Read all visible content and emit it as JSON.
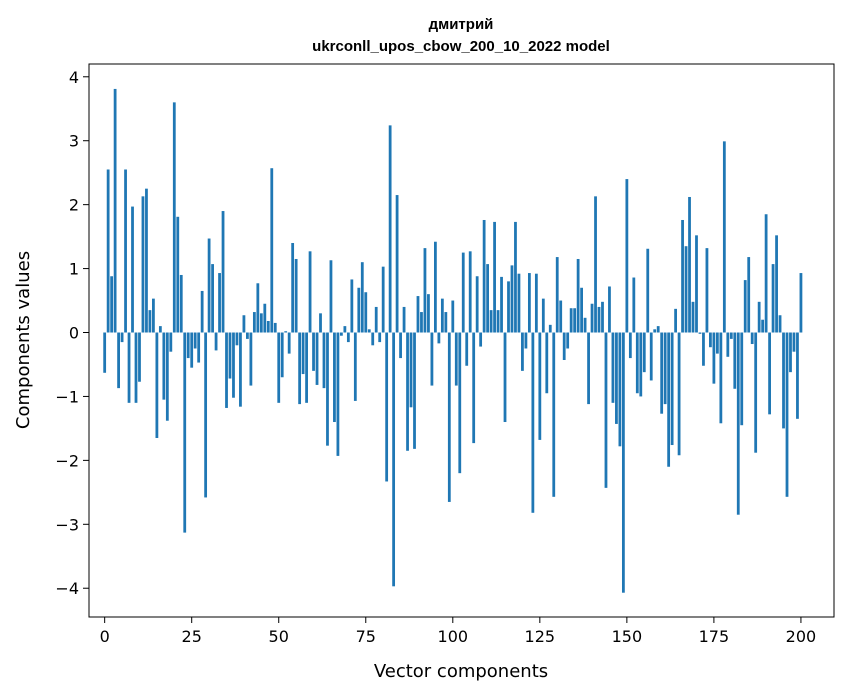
{
  "chart_data": {
    "type": "bar",
    "title": "дмитрий",
    "subtitle": "ukrconll_upos_cbow_200_10_2022 model",
    "xlabel": "Vector components",
    "ylabel": "Components values",
    "xlim": [
      -4.5,
      209.5
    ],
    "ylim": [
      -4.45,
      4.2
    ],
    "xticks": [
      0,
      25,
      50,
      75,
      100,
      125,
      150,
      175,
      200
    ],
    "yticks": [
      -4,
      -3,
      -2,
      -1,
      0,
      1,
      2,
      3,
      4
    ],
    "xtick_labels": [
      "0",
      "25",
      "50",
      "75",
      "100",
      "125",
      "150",
      "175",
      "200"
    ],
    "ytick_labels": [
      "−4",
      "−3",
      "−2",
      "−1",
      "0",
      "1",
      "2",
      "3",
      "4"
    ],
    "bar_color": "#1f77b4",
    "values": [
      -0.63,
      2.55,
      0.88,
      3.81,
      -0.87,
      -0.15,
      2.55,
      -1.1,
      1.97,
      -1.1,
      -0.77,
      2.13,
      2.25,
      0.35,
      0.53,
      -1.65,
      0.1,
      -1.05,
      -1.38,
      -0.3,
      3.6,
      1.81,
      0.9,
      -3.13,
      -0.4,
      -0.55,
      -0.25,
      -0.47,
      0.65,
      -2.58,
      1.47,
      1.07,
      -0.28,
      0.93,
      1.9,
      -1.18,
      -0.72,
      -1.02,
      -0.2,
      -1.16,
      0.27,
      -0.1,
      -0.83,
      0.32,
      0.77,
      0.3,
      0.45,
      0.18,
      2.57,
      0.15,
      -1.1,
      -0.7,
      0.02,
      -0.33,
      1.4,
      1.15,
      -1.12,
      -0.65,
      -1.1,
      1.27,
      -0.6,
      -0.82,
      0.3,
      -0.87,
      -1.77,
      1.13,
      -1.4,
      -1.93,
      -0.05,
      0.1,
      -0.15,
      0.83,
      -1.07,
      0.7,
      1.1,
      0.63,
      0.05,
      -0.2,
      0.4,
      -0.15,
      1.03,
      -2.33,
      3.24,
      -3.97,
      2.15,
      -0.4,
      0.4,
      -1.85,
      -1.17,
      -1.82,
      0.57,
      0.32,
      1.32,
      0.6,
      -0.83,
      1.42,
      -0.17,
      0.53,
      0.32,
      -2.65,
      0.5,
      -0.83,
      -2.2,
      1.25,
      -0.52,
      1.27,
      -1.73,
      0.88,
      -0.22,
      1.76,
      1.07,
      0.35,
      1.73,
      0.35,
      0.87,
      -1.4,
      0.8,
      1.05,
      1.73,
      0.92,
      -0.6,
      -0.25,
      0.93,
      -2.82,
      0.92,
      -1.68,
      0.53,
      -0.95,
      0.12,
      -2.57,
      1.18,
      0.5,
      -0.43,
      -0.25,
      0.38,
      0.38,
      1.15,
      0.7,
      0.23,
      -1.12,
      0.45,
      2.13,
      0.4,
      0.48,
      -2.43,
      0.72,
      -1.1,
      -1.43,
      -1.78,
      -4.07,
      2.4,
      -0.4,
      0.86,
      -0.95,
      -1.0,
      -0.62,
      1.31,
      -0.75,
      0.05,
      0.1,
      -1.27,
      -1.12,
      -2.1,
      -1.76,
      0.37,
      -1.92,
      1.76,
      1.35,
      2.12,
      0.48,
      1.52,
      -0.02,
      -0.52,
      1.32,
      -0.23,
      -0.8,
      -0.33,
      -1.42,
      2.99,
      -0.38,
      -0.1,
      -0.88,
      -2.85,
      -1.45,
      0.82,
      1.18,
      -0.18,
      -1.88,
      0.48,
      0.2,
      1.85,
      -1.28,
      1.07,
      1.52,
      0.27,
      -1.5,
      -2.57,
      -0.62,
      -0.3,
      -1.35,
      0.93
    ]
  }
}
